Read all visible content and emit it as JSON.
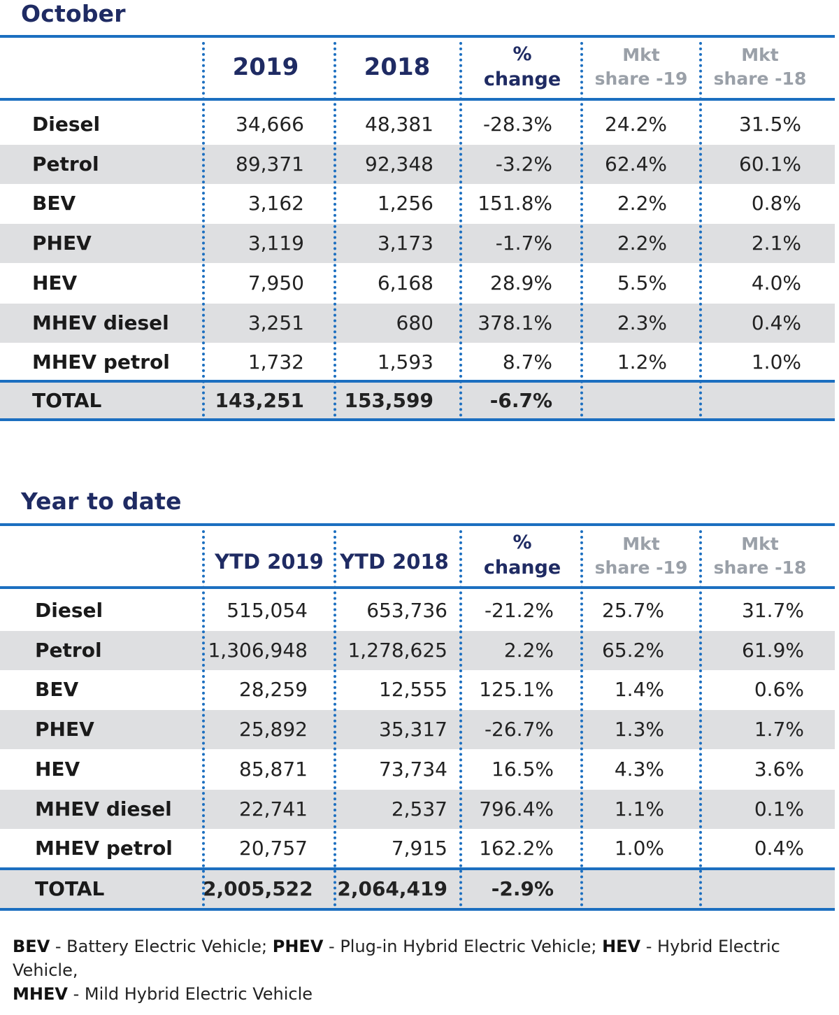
{
  "october": {
    "title": "October",
    "headers": {
      "col1": "2019",
      "col2": "2018",
      "pct_line1": "%",
      "pct_line2": "change",
      "mkt19_line1": "Mkt",
      "mkt19_line2": "share -19",
      "mkt18_line1": "Mkt",
      "mkt18_line2": "share -18"
    },
    "rows": [
      {
        "label": "Diesel",
        "v2019": "34,666",
        "v2018": "48,381",
        "change": "-28.3%",
        "mkt19": "24.2%",
        "mkt18": "31.5%"
      },
      {
        "label": "Petrol",
        "v2019": "89,371",
        "v2018": "92,348",
        "change": "-3.2%",
        "mkt19": "62.4%",
        "mkt18": "60.1%"
      },
      {
        "label": "BEV",
        "v2019": "3,162",
        "v2018": "1,256",
        "change": "151.8%",
        "mkt19": "2.2%",
        "mkt18": "0.8%"
      },
      {
        "label": "PHEV",
        "v2019": "3,119",
        "v2018": "3,173",
        "change": "-1.7%",
        "mkt19": "2.2%",
        "mkt18": "2.1%"
      },
      {
        "label": "HEV",
        "v2019": "7,950",
        "v2018": "6,168",
        "change": "28.9%",
        "mkt19": "5.5%",
        "mkt18": "4.0%"
      },
      {
        "label": "MHEV diesel",
        "v2019": "3,251",
        "v2018": "680",
        "change": "378.1%",
        "mkt19": "2.3%",
        "mkt18": "0.4%"
      },
      {
        "label": "MHEV petrol",
        "v2019": "1,732",
        "v2018": "1,593",
        "change": "8.7%",
        "mkt19": "1.2%",
        "mkt18": "1.0%"
      }
    ],
    "total": {
      "label": "TOTAL",
      "v2019": "143,251",
      "v2018": "153,599",
      "change": "-6.7%"
    }
  },
  "ytd": {
    "title": "Year to date",
    "headers": {
      "col1": "YTD 2019",
      "col2": "YTD 2018",
      "pct_line1": "%",
      "pct_line2": "change",
      "mkt19_line1": "Mkt",
      "mkt19_line2": "share -19",
      "mkt18_line1": "Mkt",
      "mkt18_line2": "share -18"
    },
    "rows": [
      {
        "label": "Diesel",
        "v2019": "515,054",
        "v2018": "653,736",
        "change": "-21.2%",
        "mkt19": "25.7%",
        "mkt18": "31.7%"
      },
      {
        "label": "Petrol",
        "v2019": "1,306,948",
        "v2018": "1,278,625",
        "change": "2.2%",
        "mkt19": "65.2%",
        "mkt18": "61.9%"
      },
      {
        "label": "BEV",
        "v2019": "28,259",
        "v2018": "12,555",
        "change": "125.1%",
        "mkt19": "1.4%",
        "mkt18": "0.6%"
      },
      {
        "label": "PHEV",
        "v2019": "25,892",
        "v2018": "35,317",
        "change": "-26.7%",
        "mkt19": "1.3%",
        "mkt18": "1.7%"
      },
      {
        "label": "HEV",
        "v2019": "85,871",
        "v2018": "73,734",
        "change": "16.5%",
        "mkt19": "4.3%",
        "mkt18": "3.6%"
      },
      {
        "label": "MHEV diesel",
        "v2019": "22,741",
        "v2018": "2,537",
        "change": "796.4%",
        "mkt19": "1.1%",
        "mkt18": "0.1%"
      },
      {
        "label": "MHEV petrol",
        "v2019": "20,757",
        "v2018": "7,915",
        "change": "162.2%",
        "mkt19": "1.0%",
        "mkt18": "0.4%"
      }
    ],
    "total": {
      "label": "TOTAL",
      "v2019": "2,005,522",
      "v2018": "2,064,419",
      "change": "-2.9%"
    }
  },
  "footnote": {
    "bev_abbr": "BEV",
    "bev_text": " - Battery Electric Vehicle; ",
    "phev_abbr": "PHEV",
    "phev_text": " - Plug-in Hybrid Electric Vehicle; ",
    "hev_abbr": "HEV",
    "hev_text": " - Hybrid Electric Vehicle,",
    "mhev_abbr": "MHEV",
    "mhev_text": " - Mild Hybrid Electric Vehicle"
  },
  "colors": {
    "title": "#1f2b63",
    "rule": "#1c6fc0",
    "muted_header": "#9aa0a8",
    "row_shade": "#dedfe1"
  }
}
